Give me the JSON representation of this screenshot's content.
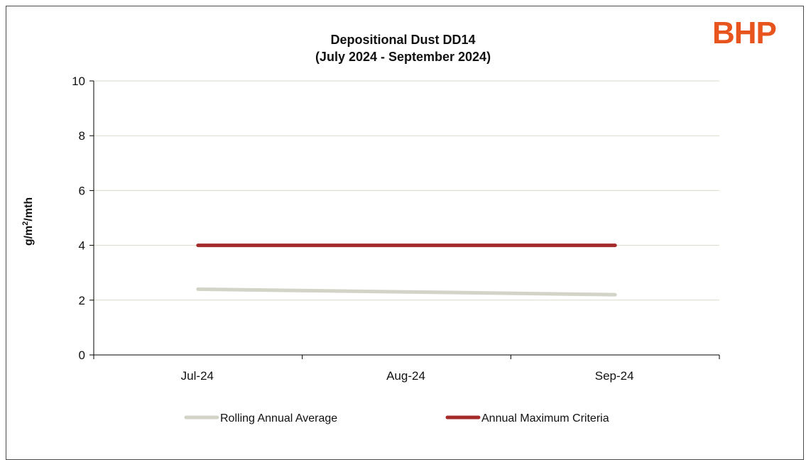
{
  "logo": {
    "text": "BHP",
    "color": "#E8541E"
  },
  "chart_data": {
    "type": "line",
    "title": "Depositional Dust DD14",
    "subtitle": "(July 2024 - September 2024)",
    "xlabel": "",
    "ylabel": "g/m²/mth",
    "categories": [
      "Jul-24",
      "Aug-24",
      "Sep-24"
    ],
    "ylim": [
      0,
      10
    ],
    "yticks": [
      0,
      2,
      4,
      6,
      8,
      10
    ],
    "grid": true,
    "legend_position": "bottom",
    "series": [
      {
        "name": "Rolling Annual Average",
        "values": [
          2.4,
          2.3,
          2.2
        ],
        "color": "#D3D3C8"
      },
      {
        "name": "Annual Maximum Criteria",
        "values": [
          4,
          4,
          4
        ],
        "color": "#A52A2A"
      }
    ]
  }
}
